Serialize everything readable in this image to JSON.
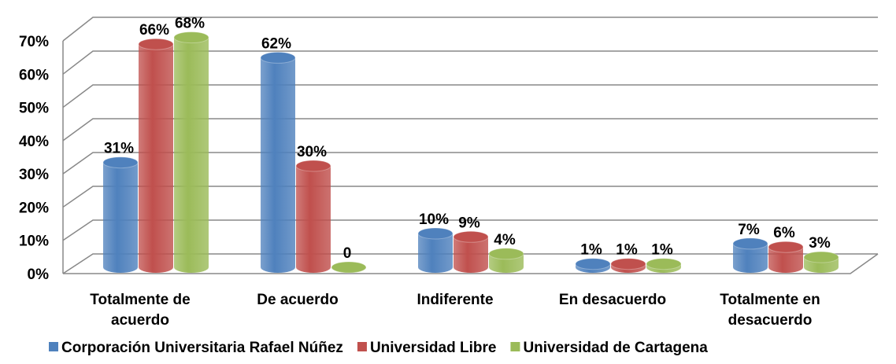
{
  "chart_data": {
    "type": "bar3d",
    "categories": [
      [
        "Totalmente de",
        "acuerdo"
      ],
      [
        "De acuerdo"
      ],
      [
        "Indiferente"
      ],
      [
        "En desacuerdo"
      ],
      [
        "Totalmente en",
        "desacuerdo"
      ]
    ],
    "series": [
      {
        "name": "Corporación Universitaria Rafael Núñez",
        "color": "#4f81bd",
        "values": [
          31,
          62,
          10,
          1,
          7
        ],
        "value_labels": [
          "31%",
          "62%",
          "10%",
          "1%",
          "7%"
        ]
      },
      {
        "name": "Universidad Libre",
        "color": "#c0504d",
        "values": [
          66,
          30,
          9,
          1,
          6
        ],
        "value_labels": [
          "66%",
          "30%",
          "9%",
          "1%",
          "6%"
        ]
      },
      {
        "name": "Universidad de Cartagena",
        "color": "#9bbb59",
        "values": [
          68,
          0,
          4,
          1,
          3
        ],
        "value_labels": [
          "68%",
          "0",
          "4%",
          "1%",
          "3%"
        ]
      }
    ],
    "ylim": [
      0,
      70
    ],
    "yticks": [
      {
        "value": 0,
        "label": "0%"
      },
      {
        "value": 10,
        "label": "10%"
      },
      {
        "value": 20,
        "label": "20%"
      },
      {
        "value": 30,
        "label": "30%"
      },
      {
        "value": 40,
        "label": "40%"
      },
      {
        "value": 50,
        "label": "50%"
      },
      {
        "value": 60,
        "label": "60%"
      },
      {
        "value": 70,
        "label": "70%"
      }
    ],
    "grid": true
  }
}
